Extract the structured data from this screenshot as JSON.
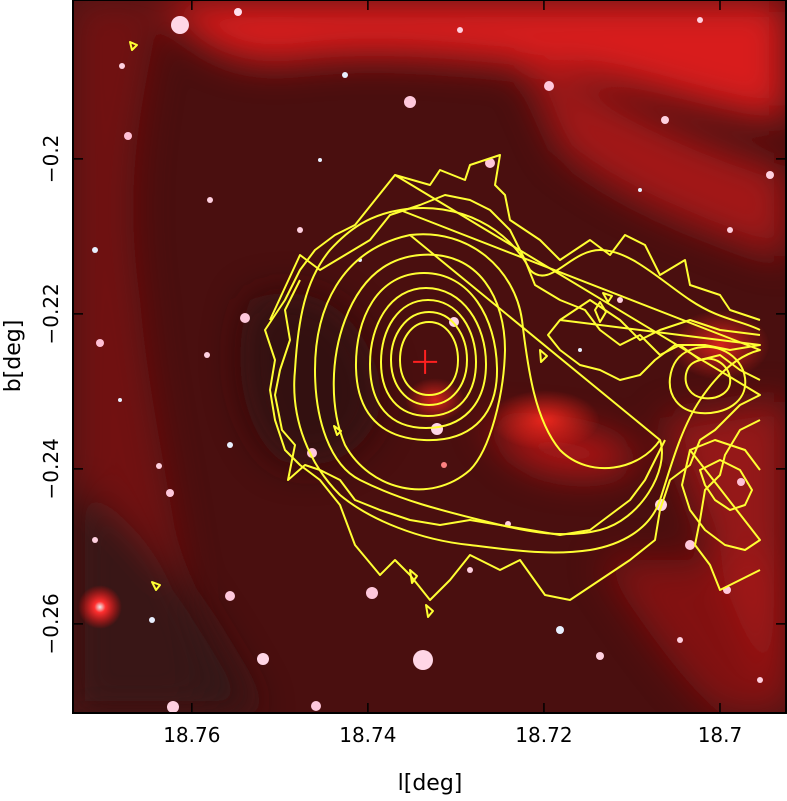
{
  "chart_data": {
    "type": "image",
    "xlabel": "l[deg]",
    "ylabel": "b[deg]",
    "x_ticks": [
      {
        "value": 18.76,
        "label": "18.76"
      },
      {
        "value": 18.74,
        "label": "18.74"
      },
      {
        "value": 18.72,
        "label": "18.72"
      },
      {
        "value": 18.7,
        "label": "18.7"
      }
    ],
    "y_ticks": [
      {
        "value": -0.2,
        "label": "−0.2"
      },
      {
        "value": -0.22,
        "label": "−0.22"
      },
      {
        "value": -0.24,
        "label": "−0.24"
      },
      {
        "value": -0.26,
        "label": "−0.26"
      }
    ],
    "xlim": [
      18.7735,
      18.6925
    ],
    "ylim": [
      -0.2715,
      -0.1795
    ],
    "marker": {
      "l": 18.7335,
      "b": -0.2262,
      "color": "#ff2020",
      "symbol": "plus"
    },
    "contour_color": "#ffff33",
    "background_color": "#5a1010",
    "emission_color": "#ff2020"
  }
}
